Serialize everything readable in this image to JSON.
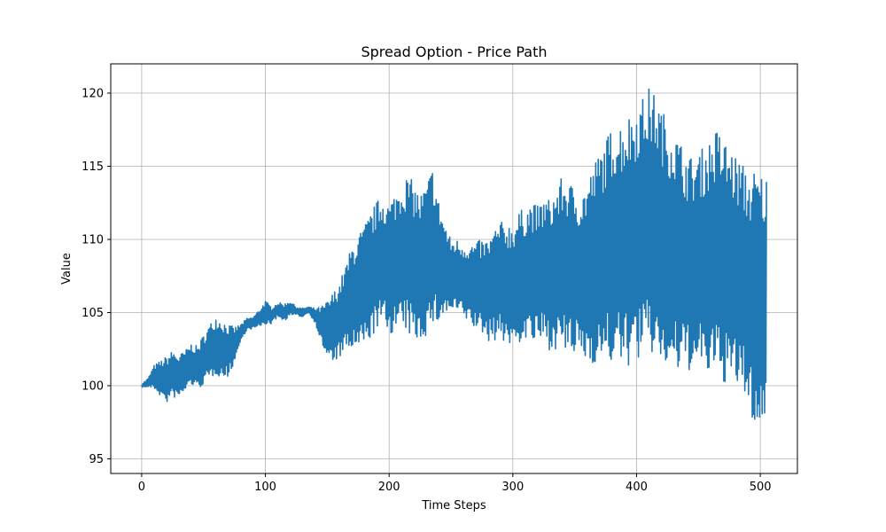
{
  "chart_data": {
    "type": "line",
    "title": "Spread Option - Price Path",
    "xlabel": "Time Steps",
    "ylabel": "Value",
    "xlim": [
      -25,
      530
    ],
    "ylim": [
      94,
      122
    ],
    "xticks": [
      0,
      100,
      200,
      300,
      400,
      500
    ],
    "yticks": [
      95,
      100,
      105,
      110,
      115,
      120
    ],
    "grid": true,
    "line_color": "#1f77b4",
    "series": [
      {
        "x": [
          0,
          5,
          10,
          15,
          20,
          25,
          30,
          35,
          40,
          45,
          50,
          55,
          60,
          65,
          70,
          75,
          80,
          85,
          90,
          95,
          100,
          105,
          110,
          115,
          120,
          125,
          130,
          135,
          140,
          145,
          150,
          155,
          160,
          165,
          170,
          175,
          180,
          185,
          190,
          195,
          200,
          205,
          210,
          215,
          220,
          225,
          230,
          235,
          240,
          245,
          250,
          255,
          260,
          265,
          270,
          275,
          280,
          285,
          290,
          295,
          300,
          305,
          310,
          315,
          320,
          325,
          330,
          335,
          340,
          345,
          350,
          355,
          360,
          365,
          370,
          375,
          380,
          385,
          390,
          395,
          400,
          405,
          410,
          415,
          420,
          425,
          430,
          435,
          440,
          445,
          450,
          455,
          460,
          465,
          470,
          475,
          480,
          485,
          490,
          495,
          500,
          505
        ],
        "center": [
          100.0,
          100.2,
          100.6,
          100.5,
          100.4,
          100.8,
          100.6,
          101.0,
          101.5,
          101.2,
          101.8,
          102.3,
          102.8,
          102.5,
          102.4,
          102.8,
          103.6,
          104.2,
          104.3,
          104.6,
          105.0,
          104.8,
          105.2,
          105.0,
          105.3,
          105.1,
          105.0,
          105.2,
          104.8,
          104.2,
          103.8,
          104.0,
          104.5,
          105.3,
          106.0,
          106.3,
          106.8,
          107.5,
          108.2,
          108.6,
          108.0,
          108.5,
          108.8,
          109.0,
          108.4,
          108.1,
          108.6,
          109.5,
          108.5,
          108.0,
          107.5,
          107.5,
          107.2,
          107.0,
          106.8,
          106.8,
          106.5,
          106.9,
          107.2,
          107.0,
          106.8,
          107.4,
          107.6,
          107.8,
          107.5,
          107.9,
          107.6,
          108.0,
          108.3,
          108.0,
          107.8,
          107.5,
          107.8,
          108.3,
          108.8,
          109.2,
          109.6,
          109.7,
          109.8,
          110.0,
          110.5,
          110.8,
          111.2,
          111.0,
          110.2,
          109.6,
          109.2,
          108.8,
          108.5,
          108.3,
          108.5,
          108.6,
          108.8,
          109.0,
          108.6,
          108.2,
          107.8,
          107.5,
          106.6,
          106.0,
          105.6,
          106.2
        ],
        "amplitude": [
          0.1,
          0.3,
          0.8,
          1.2,
          1.6,
          1.6,
          1.5,
          1.4,
          1.4,
          1.5,
          1.7,
          1.9,
          2.0,
          2.0,
          1.8,
          1.2,
          0.6,
          0.4,
          0.4,
          0.6,
          0.8,
          0.6,
          0.5,
          0.6,
          0.5,
          0.3,
          0.3,
          0.2,
          0.5,
          1.2,
          2.0,
          2.4,
          2.6,
          3.0,
          3.6,
          4.0,
          4.2,
          4.3,
          4.4,
          4.5,
          4.5,
          4.8,
          5.2,
          5.4,
          5.5,
          5.0,
          5.2,
          5.5,
          4.2,
          3.2,
          2.5,
          2.5,
          2.6,
          2.7,
          3.0,
          3.2,
          3.5,
          3.8,
          4.0,
          4.2,
          4.3,
          4.5,
          4.6,
          4.8,
          4.8,
          5.0,
          5.2,
          5.5,
          6.0,
          6.0,
          5.8,
          5.6,
          6.2,
          6.8,
          7.2,
          7.6,
          8.1,
          8.3,
          8.5,
          8.7,
          8.8,
          9.0,
          9.2,
          9.0,
          8.8,
          8.6,
          8.4,
          8.0,
          7.5,
          7.3,
          7.5,
          7.8,
          8.2,
          8.6,
          8.4,
          8.2,
          8.0,
          7.8,
          8.0,
          8.8,
          9.0,
          8.2
        ]
      }
    ]
  }
}
